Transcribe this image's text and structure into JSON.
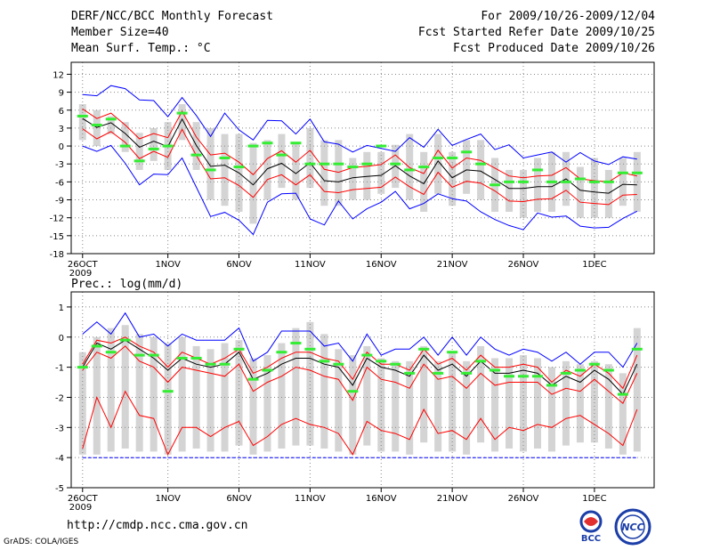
{
  "header": {
    "title": "DERF/NCC/BCC Monthly Forecast",
    "member_size": "Member Size=40",
    "var_temp": "Mean Surf. Temp.: °C",
    "period": "For 2009/10/26-2009/12/04",
    "started": "Fcst Started Refer Date 2009/10/25",
    "produced": "Fcst Produced Date 2009/10/26"
  },
  "footer": {
    "url": "http://cmdp.ncc.cma.gov.cn",
    "grads": "GrADS: COLA/IGES",
    "logo_bcc_text": "BCC",
    "logo_ncc_text": "NCC"
  },
  "colors": {
    "max_min": "#0000ff",
    "mean": "#000000",
    "spread": "#ff0000",
    "single_member": "#33ee33",
    "box": "#d4d4d4",
    "grid": "#888888"
  },
  "chart_data": [
    {
      "type": "line",
      "title": "Mean Surf. Temp.: °C",
      "ylabel": "°C",
      "ylim": [
        -18,
        14
      ],
      "yticks": [
        12,
        9,
        6,
        3,
        0,
        -3,
        -6,
        -9,
        -12,
        -15,
        -18
      ],
      "xtick_labels": [
        "26OCT",
        "1NOV",
        "6NOV",
        "11NOV",
        "16NOV",
        "21NOV",
        "26NOV",
        "1DEC"
      ],
      "xtick_day_index": [
        0,
        6,
        11,
        16,
        21,
        26,
        31,
        36
      ],
      "year_label": "2009",
      "n_days": 40,
      "series": [
        {
          "name": "max",
          "values": [
            8.6,
            8.4,
            10.1,
            9.6,
            7.7,
            7.6,
            4.9,
            8.1,
            5.1,
            1.6,
            5.5,
            2.7,
            1.0,
            4.3,
            4.2,
            2.0,
            4.5,
            0.7,
            0.3,
            -1.0,
            0.1,
            -0.4,
            -0.9,
            1.4,
            -0.2,
            2.8,
            0.1,
            1.1,
            2.0,
            -0.6,
            0.2,
            -2.0,
            -1.5,
            -1.0,
            -2.7,
            -1.1,
            -2.5,
            -3.1,
            -1.8,
            -2.2
          ]
        },
        {
          "name": "spread_high",
          "values": [
            6.2,
            4.6,
            5.5,
            3.5,
            1.2,
            2.1,
            1.4,
            5.8,
            1.5,
            -1.5,
            -1.2,
            -2.7,
            -4.8,
            -2.1,
            -0.8,
            -2.7,
            -0.7,
            -3.9,
            -4.4,
            -3.6,
            -3.4,
            -3.1,
            -1.5,
            -3.6,
            -4.6,
            -0.7,
            -3.7,
            -2.0,
            -2.4,
            -3.7,
            -5.0,
            -5.3,
            -5.0,
            -4.9,
            -3.6,
            -5.5,
            -5.8,
            -6.0,
            -4.5,
            -5.0
          ]
        },
        {
          "name": "mean",
          "values": [
            4.6,
            3.1,
            3.9,
            2.1,
            -0.2,
            0.8,
            -0.1,
            4.5,
            0.1,
            -3.4,
            -3.2,
            -4.5,
            -6.5,
            -3.8,
            -2.9,
            -4.6,
            -2.8,
            -5.8,
            -6.0,
            -5.3,
            -5.1,
            -4.9,
            -3.3,
            -5.0,
            -6.3,
            -2.5,
            -5.3,
            -4.0,
            -4.2,
            -5.6,
            -7.1,
            -7.1,
            -6.8,
            -6.8,
            -5.5,
            -7.4,
            -7.7,
            -7.9,
            -6.4,
            -6.5
          ]
        },
        {
          "name": "spread_low",
          "values": [
            2.9,
            1.2,
            2.4,
            0.6,
            -2.1,
            -0.9,
            -1.9,
            2.8,
            -1.6,
            -5.5,
            -5.3,
            -6.6,
            -8.6,
            -5.6,
            -4.8,
            -6.5,
            -4.8,
            -7.6,
            -7.8,
            -7.3,
            -7.1,
            -6.9,
            -5.2,
            -6.8,
            -8.1,
            -4.4,
            -6.9,
            -5.9,
            -6.2,
            -7.5,
            -9.2,
            -9.3,
            -8.9,
            -8.8,
            -7.4,
            -9.4,
            -9.6,
            -9.8,
            -8.2,
            -8.1
          ]
        },
        {
          "name": "min",
          "values": [
            0.0,
            -0.9,
            0.1,
            -2.9,
            -6.5,
            -4.7,
            -4.8,
            -2.0,
            -6.9,
            -11.8,
            -11.1,
            -12.4,
            -14.8,
            -9.4,
            -8.0,
            -7.9,
            -12.2,
            -13.2,
            -9.2,
            -12.2,
            -10.5,
            -9.4,
            -7.6,
            -10.5,
            -9.6,
            -8.0,
            -8.8,
            -9.2,
            -11.0,
            -12.3,
            -13.3,
            -14.0,
            -11.2,
            -11.9,
            -11.7,
            -13.4,
            -13.7,
            -13.6,
            -12.1,
            -10.9
          ]
        },
        {
          "name": "box_high",
          "values": [
            7.0,
            6.0,
            5.0,
            4.0,
            2.2,
            3.0,
            4.0,
            7.0,
            4.0,
            3.0,
            2.0,
            2.0,
            0.5,
            1.0,
            2.0,
            0.5,
            3.0,
            1.0,
            1.0,
            -2.0,
            -1.0,
            -1.0,
            0.2,
            2.0,
            -1.0,
            2.0,
            -1.0,
            1.0,
            1.0,
            -2.0,
            -4.0,
            -4.0,
            -2.0,
            -1.0,
            -1.0,
            -3.5,
            -2.0,
            -4.0,
            -2.0,
            -1.0
          ]
        },
        {
          "name": "box_low",
          "values": [
            1.0,
            0.0,
            2.0,
            -1.0,
            -4.0,
            -2.5,
            -4.0,
            1.0,
            -4.0,
            -9.0,
            -10.0,
            -11.0,
            -13.0,
            -9.0,
            -7.0,
            -9.0,
            -7.0,
            -10.0,
            -10.0,
            -9.0,
            -9.0,
            -8.0,
            -7.0,
            -9.0,
            -11.0,
            -8.0,
            -10.0,
            -8.0,
            -9.0,
            -11.0,
            -11.0,
            -12.0,
            -11.0,
            -11.0,
            -10.0,
            -12.0,
            -12.0,
            -12.0,
            -10.0,
            -11.0
          ]
        },
        {
          "name": "single_member",
          "values": [
            5.0,
            3.5,
            4.5,
            0.0,
            -2.5,
            -0.5,
            0.0,
            5.5,
            -1.5,
            -4.0,
            -2.0,
            -3.5,
            0.0,
            0.5,
            -1.5,
            0.5,
            -3.0,
            -3.0,
            -3.0,
            -3.5,
            -3.0,
            0.0,
            -3.0,
            -4.0,
            -3.5,
            -2.0,
            -2.0,
            -1.0,
            -3.0,
            -6.5,
            -6.0,
            -6.0,
            -4.0,
            -6.0,
            -6.0,
            -5.5,
            -6.0,
            -6.0,
            -4.5,
            -4.5
          ]
        }
      ]
    },
    {
      "type": "line",
      "title": "Prec.: log(mm/d)",
      "ylabel": "log(mm/d)",
      "ylim": [
        -5,
        1.5
      ],
      "yticks": [
        1,
        0,
        -1,
        -2,
        -3,
        -4,
        -5
      ],
      "xtick_labels": [
        "26OCT",
        "1NOV",
        "6NOV",
        "11NOV",
        "16NOV",
        "21NOV",
        "26NOV",
        "1DEC"
      ],
      "xtick_day_index": [
        0,
        6,
        11,
        16,
        21,
        26,
        31,
        36
      ],
      "year_label": "2009",
      "n_days": 40,
      "series": [
        {
          "name": "max",
          "values": [
            0.1,
            0.5,
            0.1,
            0.8,
            0.0,
            0.1,
            -0.3,
            0.1,
            -0.1,
            -0.1,
            -0.1,
            0.3,
            -0.8,
            -0.5,
            0.2,
            0.2,
            0.2,
            -0.3,
            -0.2,
            -0.8,
            0.1,
            -0.6,
            -0.4,
            -0.4,
            0.0,
            -0.6,
            0.0,
            -0.6,
            0.0,
            -0.4,
            -0.6,
            -0.4,
            -0.5,
            -0.8,
            -0.5,
            -0.9,
            -0.5,
            -0.5,
            -1.0,
            -0.2
          ]
        },
        {
          "name": "spread_high",
          "values": [
            -0.9,
            -0.1,
            -0.2,
            0.0,
            -0.3,
            -0.5,
            -1.0,
            -0.5,
            -0.7,
            -0.9,
            -0.7,
            -0.4,
            -1.2,
            -1.0,
            -0.7,
            -0.5,
            -0.5,
            -0.7,
            -0.8,
            -1.4,
            -0.5,
            -0.9,
            -0.9,
            -1.1,
            -0.4,
            -0.9,
            -0.7,
            -1.1,
            -0.6,
            -1.0,
            -1.0,
            -0.9,
            -1.0,
            -1.5,
            -1.1,
            -1.3,
            -0.9,
            -1.2,
            -1.7,
            -0.6
          ]
        },
        {
          "name": "mean",
          "values": [
            -1.0,
            -0.2,
            -0.4,
            -0.1,
            -0.4,
            -0.7,
            -1.1,
            -0.7,
            -0.9,
            -1.0,
            -0.9,
            -0.5,
            -1.4,
            -1.2,
            -0.9,
            -0.7,
            -0.7,
            -0.9,
            -1.0,
            -1.6,
            -0.7,
            -1.0,
            -1.1,
            -1.3,
            -0.6,
            -1.1,
            -0.9,
            -1.3,
            -0.8,
            -1.2,
            -1.2,
            -1.1,
            -1.2,
            -1.6,
            -1.3,
            -1.5,
            -1.1,
            -1.4,
            -1.9,
            -0.9
          ]
        },
        {
          "name": "spread_low",
          "values": [
            -1.1,
            -0.5,
            -0.7,
            -0.3,
            -0.8,
            -1.0,
            -1.5,
            -1.0,
            -1.1,
            -1.2,
            -1.3,
            -0.9,
            -1.8,
            -1.5,
            -1.3,
            -1.0,
            -1.1,
            -1.3,
            -1.4,
            -2.1,
            -1.0,
            -1.4,
            -1.5,
            -1.7,
            -0.9,
            -1.4,
            -1.3,
            -1.7,
            -1.2,
            -1.6,
            -1.5,
            -1.5,
            -1.5,
            -1.9,
            -1.7,
            -1.8,
            -1.4,
            -1.8,
            -2.2,
            -1.2
          ]
        },
        {
          "name": "spread_min",
          "values": [
            -3.7,
            -2.0,
            -3.0,
            -1.8,
            -2.6,
            -2.7,
            -3.9,
            -3.0,
            -3.0,
            -3.3,
            -3.0,
            -2.8,
            -3.6,
            -3.3,
            -2.9,
            -2.7,
            -2.9,
            -3.0,
            -3.2,
            -3.9,
            -2.8,
            -3.1,
            -3.2,
            -3.4,
            -2.4,
            -3.2,
            -3.1,
            -3.4,
            -2.7,
            -3.4,
            -3.0,
            -3.1,
            -2.9,
            -3.0,
            -2.7,
            -2.6,
            -2.9,
            -3.2,
            -3.6,
            -2.4
          ]
        },
        {
          "name": "min",
          "values": [
            -4,
            -4,
            -4,
            -4,
            -4,
            -4,
            -4,
            -4,
            -4,
            -4,
            -4,
            -4,
            -4,
            -4,
            -4,
            -4,
            -4,
            -4,
            -4,
            -4,
            -4,
            -4,
            -4,
            -4,
            -4,
            -4,
            -4,
            -4,
            -4,
            -4,
            -4,
            -4,
            -4,
            -4,
            -4,
            -4,
            -4,
            -4,
            -4,
            -4
          ]
        },
        {
          "name": "box_high",
          "values": [
            -0.5,
            0.0,
            0.3,
            0.4,
            0.1,
            0.0,
            -0.2,
            0.0,
            -0.3,
            -0.4,
            -0.2,
            -0.1,
            -0.7,
            -0.6,
            -0.2,
            0.3,
            0.5,
            0.1,
            -0.4,
            -0.6,
            -0.3,
            -0.7,
            -0.8,
            -0.8,
            -0.3,
            -0.8,
            -0.5,
            -0.8,
            -0.3,
            -0.7,
            -0.7,
            -0.6,
            -0.7,
            -1.0,
            -0.8,
            -0.9,
            -0.8,
            -0.9,
            -1.2,
            0.3
          ]
        },
        {
          "name": "box_low",
          "values": [
            -3.9,
            -3.9,
            -3.8,
            -3.7,
            -3.8,
            -3.8,
            -3.9,
            -3.8,
            -3.7,
            -3.8,
            -3.8,
            -3.6,
            -3.9,
            -3.8,
            -3.7,
            -3.6,
            -3.6,
            -3.7,
            -3.8,
            -3.9,
            -3.6,
            -3.8,
            -3.8,
            -3.9,
            -3.5,
            -3.8,
            -3.8,
            -3.9,
            -3.5,
            -3.8,
            -3.7,
            -3.8,
            -3.7,
            -3.8,
            -3.6,
            -3.5,
            -3.5,
            -3.7,
            -3.9,
            -3.8
          ]
        },
        {
          "name": "single_member",
          "values": [
            -1.0,
            -0.3,
            -0.5,
            -0.1,
            -0.6,
            -0.6,
            -1.8,
            -0.7,
            -0.7,
            -0.9,
            -0.9,
            -0.4,
            -1.4,
            -1.1,
            -0.5,
            -0.2,
            -0.4,
            -0.8,
            -0.9,
            -1.8,
            -0.6,
            -0.8,
            -0.9,
            -1.2,
            -0.4,
            -1.2,
            -0.5,
            -1.2,
            -0.8,
            -1.1,
            -1.3,
            -1.3,
            -1.3,
            -1.6,
            -1.2,
            -1.1,
            -0.9,
            -1.1,
            -1.9,
            -0.4
          ]
        }
      ]
    }
  ]
}
